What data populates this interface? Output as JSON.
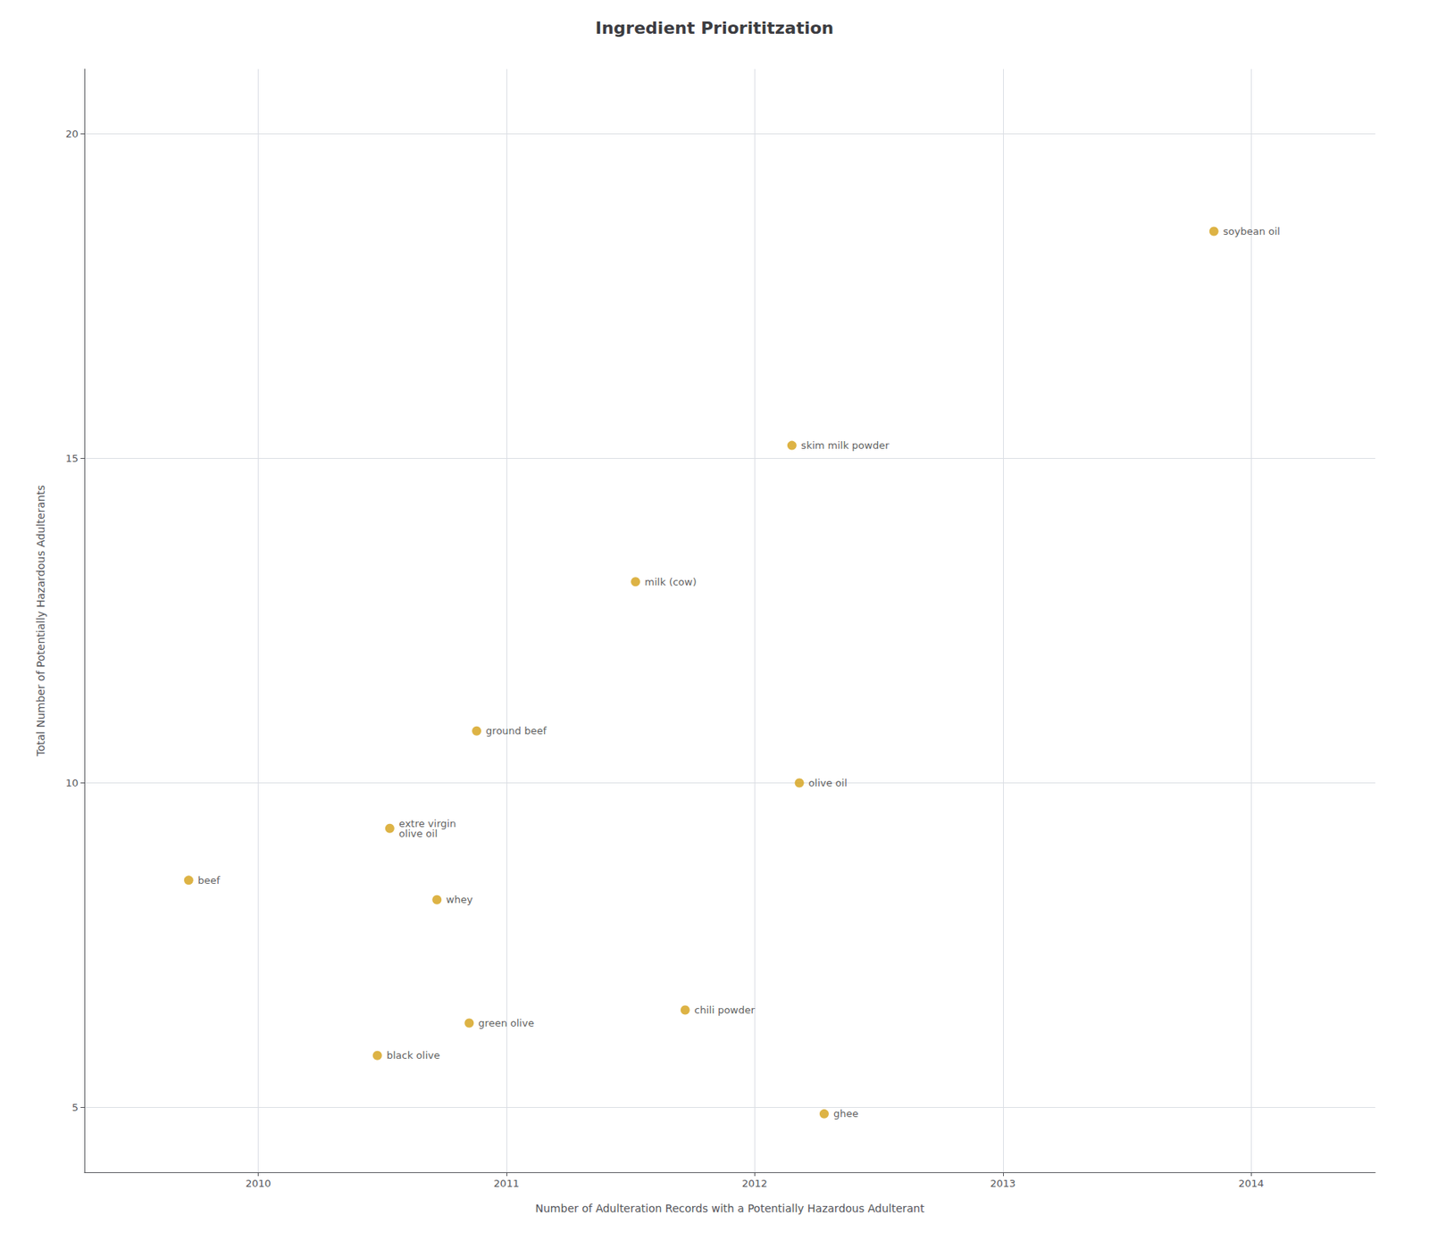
{
  "chart_data": {
    "type": "scatter",
    "title": "Ingredient Priorititzation",
    "xlabel": "Number of Adulteration Records with a Potentially Hazardous Adulterant",
    "ylabel": "Total Number of Potentially Hazardous Adulterants",
    "x": [
      2009.72,
      2010.48,
      2010.53,
      2010.72,
      2010.85,
      2010.88,
      2011.52,
      2011.72,
      2012.15,
      2012.18,
      2012.28,
      2013.85
    ],
    "values": [
      8.5,
      5.8,
      9.3,
      8.2,
      6.3,
      10.8,
      13.1,
      6.5,
      15.2,
      10.0,
      4.9,
      18.5
    ],
    "labels": [
      "beef",
      "black olive",
      "extre virgin\nolive oil",
      "whey",
      "green olive",
      "ground beef",
      "milk (cow)",
      "chili powder",
      "skim milk powder",
      "olive oil",
      "ghee",
      "soybean oil"
    ],
    "color": "#D4A017",
    "marker": "circle",
    "xlim": [
      2009.3,
      2014.5
    ],
    "ylim": [
      4,
      21
    ],
    "xticks": [
      2010,
      2011,
      2012,
      2013,
      2014
    ],
    "yticks": [
      5,
      10,
      15,
      20
    ],
    "grid": true
  }
}
